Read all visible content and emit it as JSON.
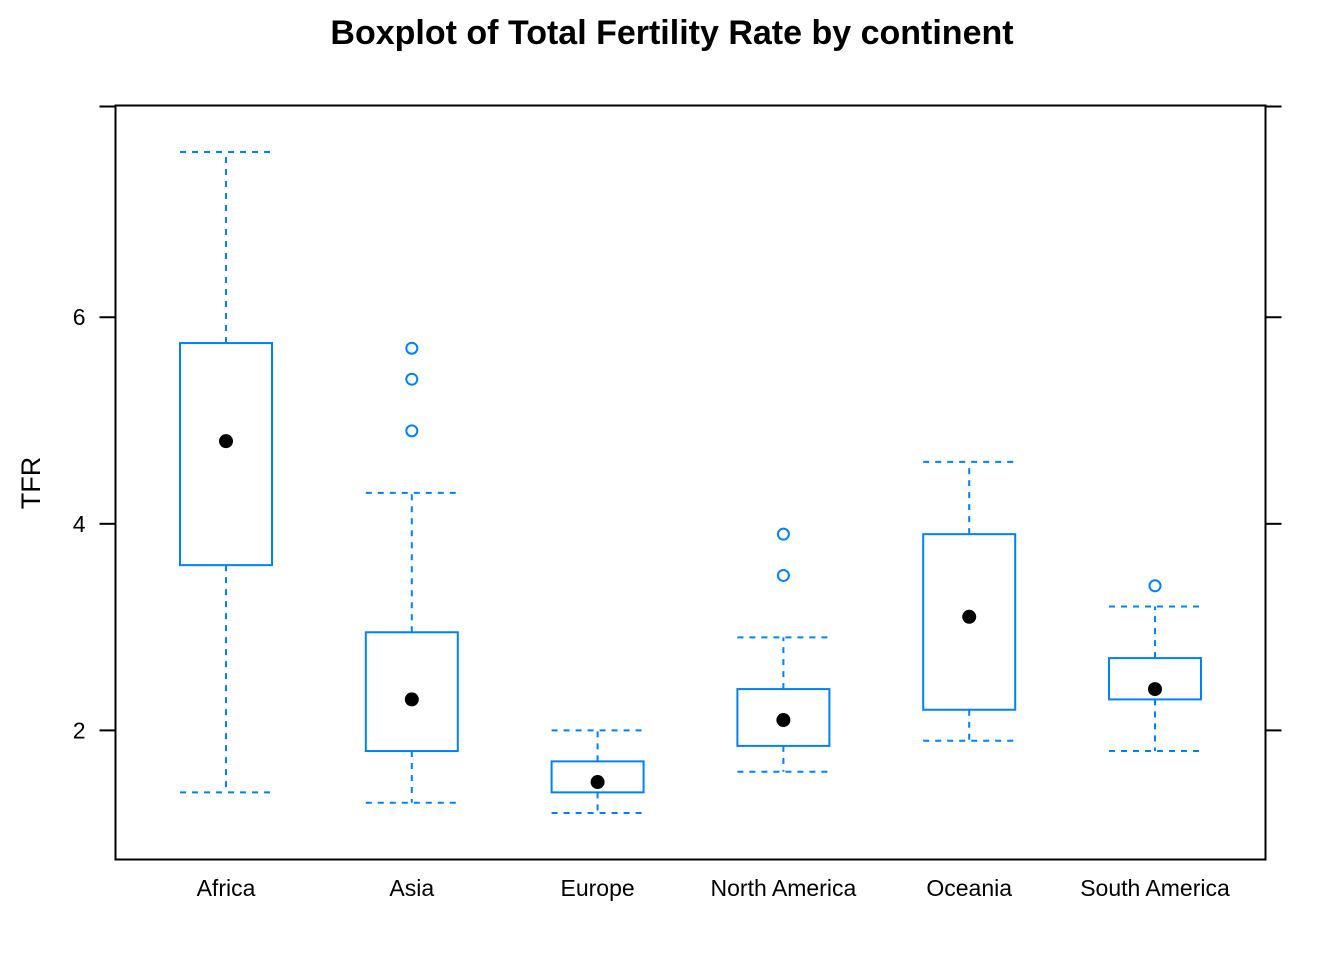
{
  "chart_data": {
    "type": "boxplot",
    "title": "Boxplot of Total Fertility Rate by continent",
    "xlabel": "",
    "ylabel": "TFR",
    "ylim": [
      0.75,
      8.05
    ],
    "yticks": [
      2,
      4,
      6
    ],
    "grid": false,
    "categories": [
      "Africa",
      "Asia",
      "Europe",
      "North America",
      "Oceania",
      "South America"
    ],
    "boxes": [
      {
        "category": "Africa",
        "whisker_low": 1.4,
        "q1": 3.6,
        "median": 4.8,
        "q3": 5.75,
        "whisker_high": 7.6,
        "outliers": []
      },
      {
        "category": "Asia",
        "whisker_low": 1.3,
        "q1": 1.8,
        "median": 2.3,
        "q3": 2.95,
        "whisker_high": 4.3,
        "outliers": [
          4.9,
          5.4,
          5.7
        ]
      },
      {
        "category": "Europe",
        "whisker_low": 1.2,
        "q1": 1.4,
        "median": 1.5,
        "q3": 1.7,
        "whisker_high": 2.0,
        "outliers": []
      },
      {
        "category": "North America",
        "whisker_low": 1.6,
        "q1": 1.85,
        "median": 2.1,
        "q3": 2.4,
        "whisker_high": 2.9,
        "outliers": [
          3.5,
          3.9
        ]
      },
      {
        "category": "Oceania",
        "whisker_low": 1.9,
        "q1": 2.2,
        "median": 3.1,
        "q3": 3.9,
        "whisker_high": 4.6,
        "outliers": []
      },
      {
        "category": "South America",
        "whisker_low": 1.8,
        "q1": 2.3,
        "median": 2.4,
        "q3": 2.7,
        "whisker_high": 3.2,
        "outliers": [
          3.4
        ]
      }
    ],
    "colors": {
      "box": "#0080ff",
      "median": "#000000",
      "axis": "#000000"
    }
  }
}
